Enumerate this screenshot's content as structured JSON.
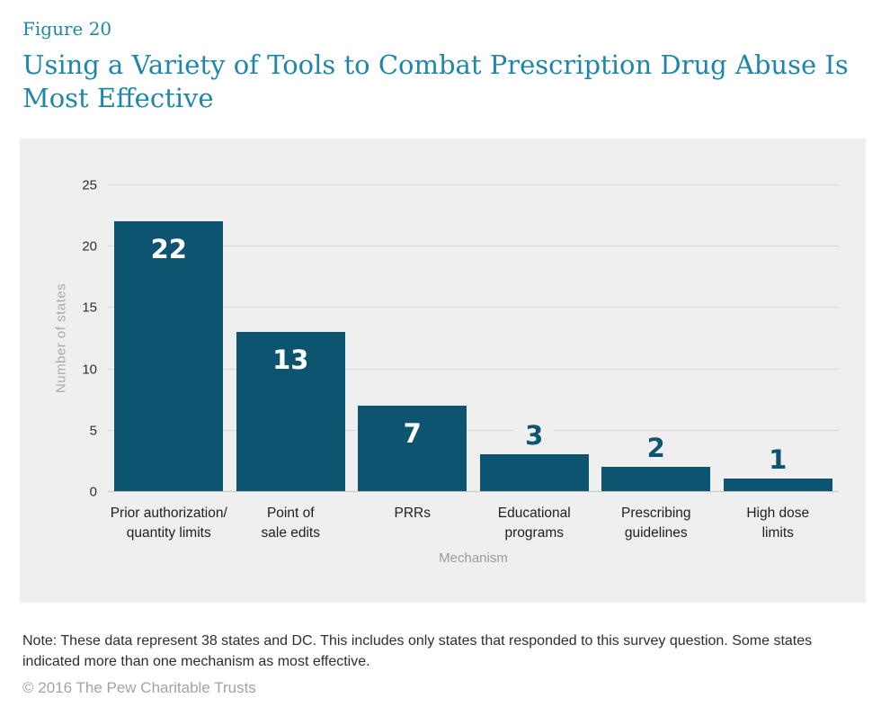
{
  "figure_label": "Figure 20",
  "title_line1": "Using a Variety of Tools to Combat Prescription Drug Abuse Is",
  "title_line2": "Most Effective",
  "note": "Note: These data represent 38 states and DC. This includes only states that responded to this survey question. Some states indicated more than one mechanism as most effective.",
  "copyright": "© 2016 The Pew Charitable Trusts",
  "colors": {
    "accent_teal_title": "#1e87a9",
    "bar_fill": "#0d5471",
    "panel_background": "#f0efef",
    "gridline": "#d8d8d8",
    "axis_title_gray": "#9b9b9b"
  },
  "chart_data": {
    "type": "bar",
    "title": "Using a Variety of Tools to Combat Prescription Drug Abuse Is Most Effective",
    "categories": [
      [
        "Prior authorization/",
        "quantity limits"
      ],
      [
        "Point of",
        "sale edits"
      ],
      [
        "PRRs"
      ],
      [
        "Educational",
        "programs"
      ],
      [
        "Prescribing",
        "guidelines"
      ],
      [
        "High dose",
        "limits"
      ]
    ],
    "values": [
      22,
      13,
      7,
      3,
      2,
      1
    ],
    "xlabel": "Mechanism",
    "ylabel": "Number of states",
    "ylim": [
      0,
      25
    ],
    "yticks": [
      0,
      5,
      10,
      15,
      20,
      25
    ],
    "grid": "horizontal",
    "legend": "none",
    "value_labels": "22 13 7 shown in white inside bars; 3 2 1 shown in teal above bars"
  }
}
